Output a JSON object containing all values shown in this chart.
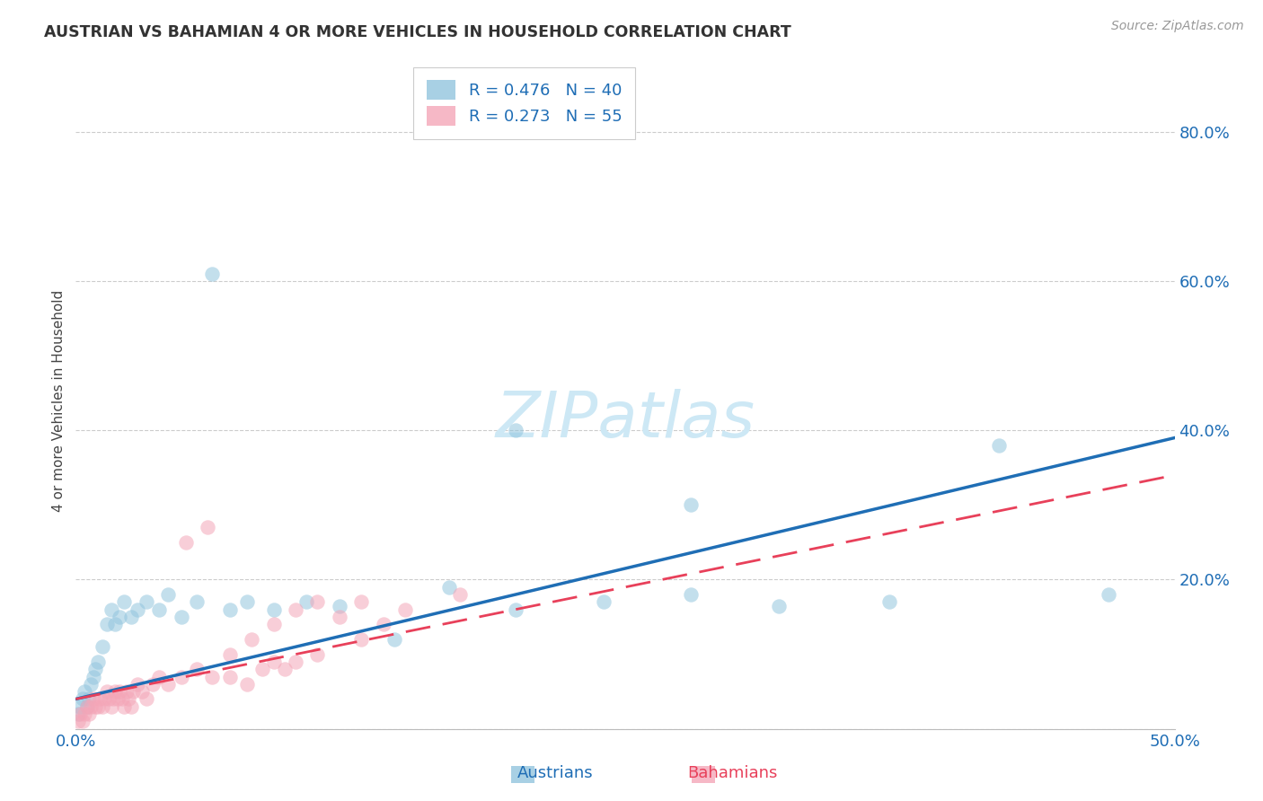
{
  "title": "AUSTRIAN VS BAHAMIAN 4 OR MORE VEHICLES IN HOUSEHOLD CORRELATION CHART",
  "source": "Source: ZipAtlas.com",
  "ylabel": "4 or more Vehicles in Household",
  "xlim": [
    0.0,
    0.5
  ],
  "ylim": [
    0.0,
    0.88
  ],
  "xticks": [
    0.0,
    0.1,
    0.2,
    0.3,
    0.4,
    0.5
  ],
  "yticks": [
    0.0,
    0.2,
    0.4,
    0.6,
    0.8
  ],
  "xticklabels": [
    "0.0%",
    "",
    "",
    "",
    "",
    "50.0%"
  ],
  "yticklabels": [
    "",
    "20.0%",
    "40.0%",
    "60.0%",
    "80.0%"
  ],
  "color_austrians": "#92c5de",
  "color_bahamians": "#f4a6b8",
  "line_color_austrians": "#1f6eb5",
  "line_color_bahamians": "#e8405a",
  "background_color": "#ffffff",
  "austrians_x": [
    0.001,
    0.002,
    0.003,
    0.004,
    0.005,
    0.006,
    0.007,
    0.008,
    0.009,
    0.01,
    0.012,
    0.014,
    0.016,
    0.018,
    0.02,
    0.022,
    0.025,
    0.028,
    0.032,
    0.038,
    0.042,
    0.048,
    0.055,
    0.062,
    0.07,
    0.078,
    0.09,
    0.105,
    0.12,
    0.145,
    0.17,
    0.2,
    0.24,
    0.28,
    0.32,
    0.37,
    0.42,
    0.47,
    0.28,
    0.2
  ],
  "austrians_y": [
    0.02,
    0.03,
    0.04,
    0.05,
    0.03,
    0.04,
    0.06,
    0.07,
    0.08,
    0.09,
    0.11,
    0.14,
    0.16,
    0.14,
    0.15,
    0.17,
    0.15,
    0.16,
    0.17,
    0.16,
    0.18,
    0.15,
    0.17,
    0.61,
    0.16,
    0.17,
    0.16,
    0.17,
    0.165,
    0.12,
    0.19,
    0.16,
    0.17,
    0.18,
    0.165,
    0.17,
    0.38,
    0.18,
    0.3,
    0.4
  ],
  "bahamians_x": [
    0.001,
    0.002,
    0.003,
    0.004,
    0.005,
    0.006,
    0.007,
    0.008,
    0.009,
    0.01,
    0.011,
    0.012,
    0.013,
    0.014,
    0.015,
    0.016,
    0.017,
    0.018,
    0.019,
    0.02,
    0.021,
    0.022,
    0.023,
    0.024,
    0.025,
    0.026,
    0.028,
    0.03,
    0.032,
    0.035,
    0.038,
    0.042,
    0.048,
    0.055,
    0.062,
    0.07,
    0.078,
    0.085,
    0.09,
    0.095,
    0.1,
    0.11,
    0.13,
    0.05,
    0.06,
    0.07,
    0.08,
    0.09,
    0.1,
    0.11,
    0.12,
    0.13,
    0.14,
    0.15,
    0.175
  ],
  "bahamians_y": [
    0.01,
    0.02,
    0.01,
    0.02,
    0.03,
    0.02,
    0.03,
    0.04,
    0.03,
    0.03,
    0.04,
    0.03,
    0.04,
    0.05,
    0.04,
    0.03,
    0.04,
    0.05,
    0.04,
    0.05,
    0.04,
    0.03,
    0.05,
    0.04,
    0.03,
    0.05,
    0.06,
    0.05,
    0.04,
    0.06,
    0.07,
    0.06,
    0.07,
    0.08,
    0.07,
    0.07,
    0.06,
    0.08,
    0.09,
    0.08,
    0.09,
    0.1,
    0.12,
    0.25,
    0.27,
    0.1,
    0.12,
    0.14,
    0.16,
    0.17,
    0.15,
    0.17,
    0.14,
    0.16,
    0.18
  ],
  "watermark": "ZIPatlas",
  "watermark_color": "#cde8f5",
  "legend_R_austrians": "R = 0.476",
  "legend_N_austrians": "N = 40",
  "legend_R_bahamians": "R = 0.273",
  "legend_N_bahamians": "N = 55"
}
